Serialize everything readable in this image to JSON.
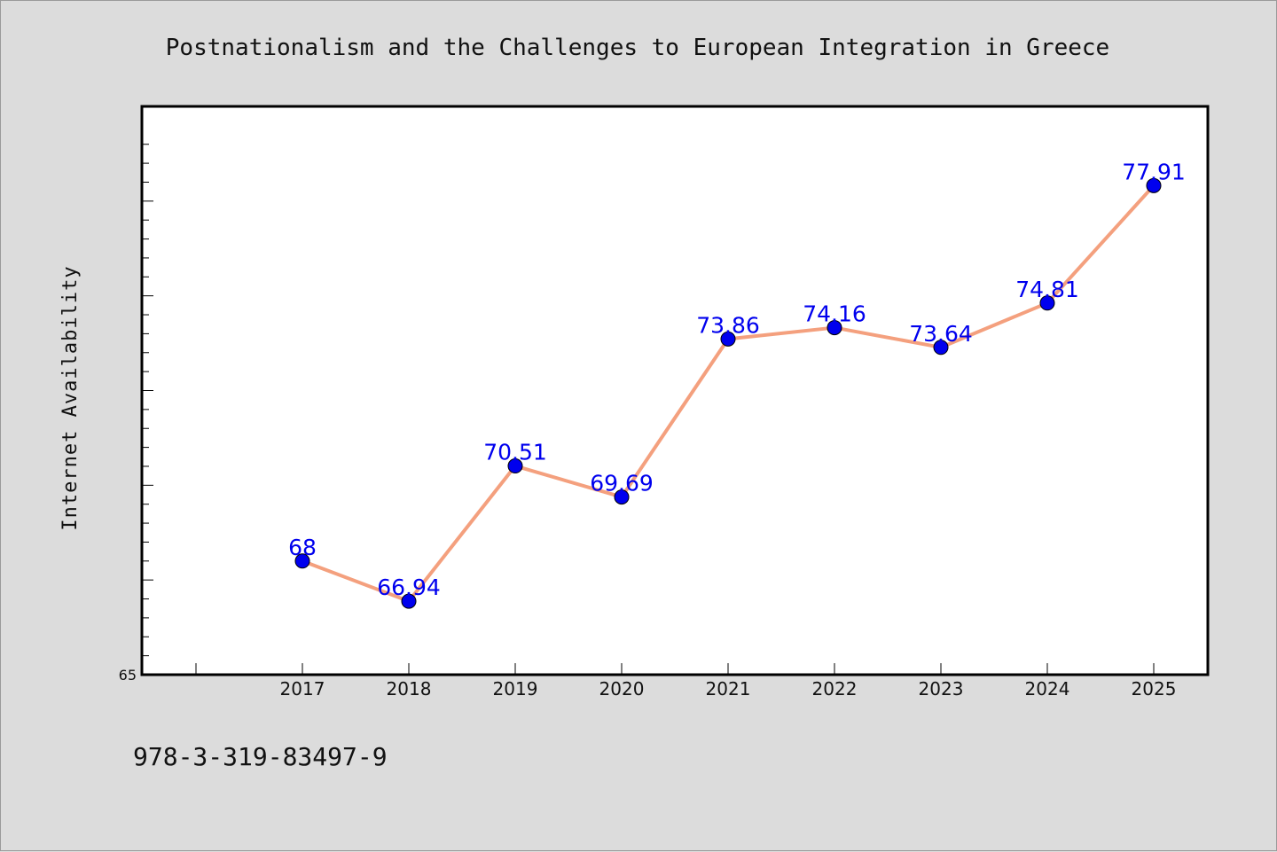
{
  "chart_data": {
    "type": "line",
    "title": "Postnationalism and the Challenges to European Integration in Greece",
    "ylabel": "Internet Availability",
    "xlabel": "",
    "x": [
      "2017",
      "2018",
      "2019",
      "2020",
      "2021",
      "2022",
      "2023",
      "2024",
      "2025"
    ],
    "series": [
      {
        "values": [
          68,
          66.94,
          70.51,
          69.69,
          73.86,
          74.16,
          73.64,
          74.81,
          77.91
        ],
        "data_labels": [
          "68",
          "66.94",
          "70.51",
          "69.69",
          "73.86",
          "74.16",
          "73.64",
          "74.81",
          "77.91"
        ],
        "line_color": "#f4a07e",
        "marker_color": "#0000ee"
      }
    ],
    "ylim": [
      65,
      80
    ],
    "y_tick_labels": [
      {
        "value": 65,
        "label": "65"
      }
    ],
    "grid": false,
    "legend": "none",
    "label_color": "#0000ee"
  },
  "footer": {
    "isbn": "978-3-319-83497-9"
  }
}
